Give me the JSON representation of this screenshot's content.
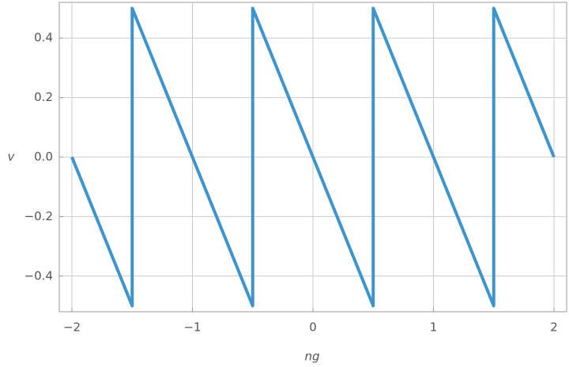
{
  "chart_data": {
    "type": "line",
    "x_label": "ng",
    "y_label": "v",
    "x": [
      -2,
      -1.5,
      -1.5,
      -0.5,
      -0.5,
      0.5,
      0.5,
      1.5,
      1.5,
      2
    ],
    "series": [
      {
        "color": "#3e95cd",
        "values": [
          0,
          -0.5,
          0.5,
          -0.5,
          0.5,
          -0.5,
          0.5,
          -0.5,
          0.5,
          0
        ]
      }
    ],
    "xlim": [
      -2.105,
      2.105
    ],
    "ylim": [
      -0.52,
      0.52
    ],
    "xticks": [
      {
        "value": -2,
        "label": "−2"
      },
      {
        "value": -1,
        "label": "−1"
      },
      0,
      1,
      2
    ],
    "yticks": [
      {
        "value": -0.4,
        "label": "−0.4"
      },
      {
        "value": -0.2,
        "label": "−0.2"
      },
      {
        "value": 0,
        "label": "0.0"
      },
      0.2,
      0.4
    ],
    "grid": true
  }
}
